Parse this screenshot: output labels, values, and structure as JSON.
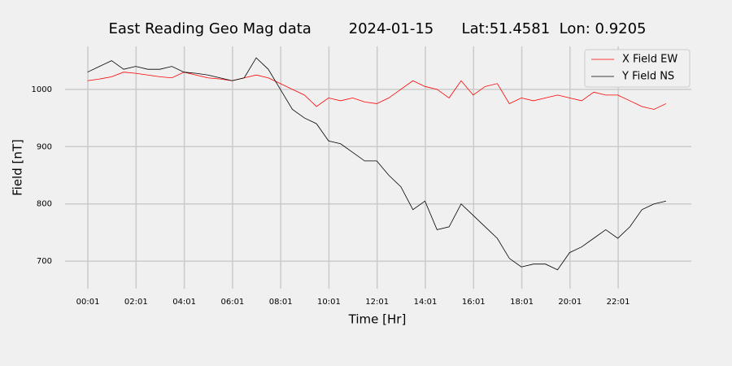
{
  "chart_data": {
    "type": "line",
    "title": "East Reading Geo Mag data        2024-01-15      Lat:51.4581  Lon: 0.9205",
    "x_label": "Time  [Hr]",
    "y_label": "Field  [nT]",
    "x": [
      0,
      0.5,
      1,
      1.5,
      2,
      2.5,
      3,
      3.5,
      4,
      4.5,
      5,
      5.5,
      6,
      6.5,
      7,
      7.5,
      8,
      8.5,
      9,
      9.5,
      10,
      10.5,
      11,
      11.5,
      12,
      12.5,
      13,
      13.5,
      14,
      14.5,
      15,
      15.5,
      16,
      16.5,
      17,
      17.5,
      18,
      18.5,
      19,
      19.5,
      20,
      20.5,
      21,
      21.5,
      22,
      22.5,
      23,
      23.5,
      24
    ],
    "series": [
      {
        "name": "X Field EW",
        "color": "#ff0000",
        "values": [
          1015,
          1018,
          1022,
          1030,
          1028,
          1025,
          1022,
          1020,
          1030,
          1025,
          1020,
          1018,
          1015,
          1020,
          1025,
          1020,
          1010,
          1000,
          990,
          970,
          985,
          980,
          985,
          978,
          975,
          985,
          1000,
          1015,
          1005,
          1000,
          985,
          1015,
          990,
          1005,
          1010,
          975,
          985,
          980,
          985,
          990,
          985,
          980,
          995,
          990,
          990,
          980,
          970,
          965,
          975
        ]
      },
      {
        "name": "Y Field NS",
        "color": "#000000",
        "values": [
          1030,
          1040,
          1050,
          1035,
          1040,
          1035,
          1035,
          1040,
          1030,
          1028,
          1025,
          1020,
          1015,
          1020,
          1055,
          1035,
          1000,
          965,
          950,
          940,
          910,
          905,
          890,
          875,
          875,
          850,
          830,
          790,
          805,
          755,
          760,
          800,
          780,
          760,
          740,
          705,
          690,
          695,
          695,
          685,
          715,
          725,
          740,
          755,
          740,
          760,
          790,
          800,
          805
        ]
      }
    ],
    "xlim": [
      -0.93,
      25.05
    ],
    "ylim": [
      652,
      1075
    ],
    "xticks": [
      {
        "value": 0.0167,
        "label": "00:01"
      },
      {
        "value": 2.0167,
        "label": "02:01"
      },
      {
        "value": 4.0167,
        "label": "04:01"
      },
      {
        "value": 6.0167,
        "label": "06:01"
      },
      {
        "value": 8.0167,
        "label": "08:01"
      },
      {
        "value": 10.0167,
        "label": "10:01"
      },
      {
        "value": 12.0167,
        "label": "12:01"
      },
      {
        "value": 14.0167,
        "label": "14:01"
      },
      {
        "value": 16.0167,
        "label": "16:01"
      },
      {
        "value": 18.0167,
        "label": "18:01"
      },
      {
        "value": 20.0167,
        "label": "20:01"
      },
      {
        "value": 22.0167,
        "label": "22:01"
      }
    ],
    "yticks": [
      700,
      800,
      900,
      1000
    ],
    "grid": true,
    "legend": "upper-right"
  }
}
